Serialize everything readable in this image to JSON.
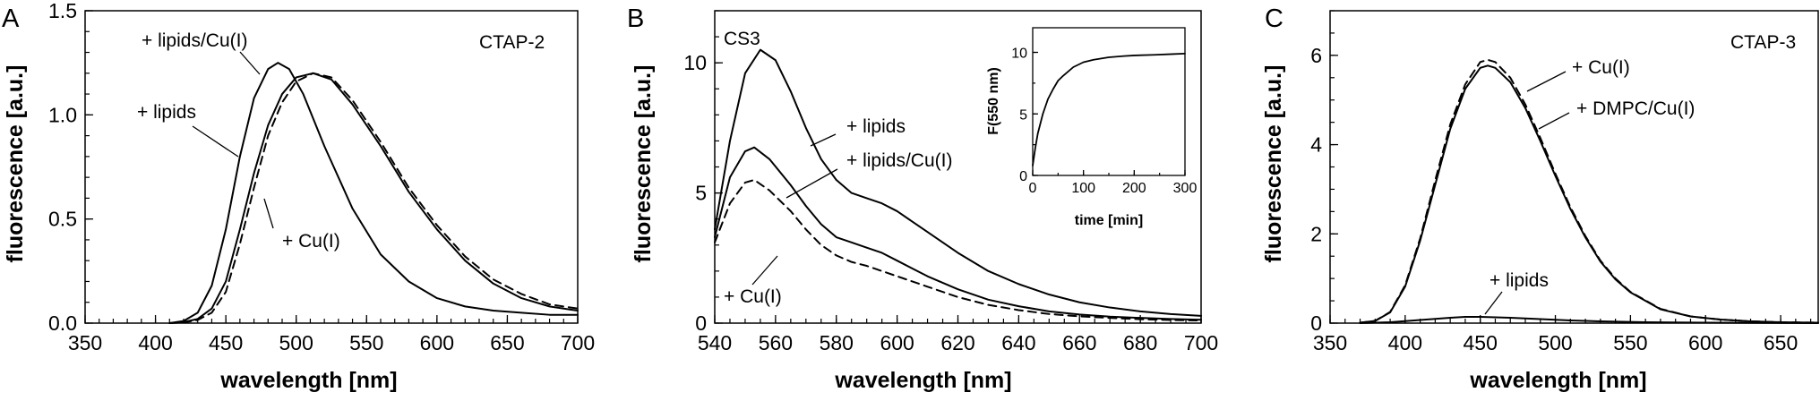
{
  "chart_data": [
    {
      "type": "line",
      "panel": "A",
      "title": "CTAP-2",
      "xlabel": "wavelength [nm]",
      "ylabel": "fluorescence [a.u.]",
      "xlim": [
        350,
        700
      ],
      "ylim": [
        0,
        1.5
      ],
      "xticks": [
        350,
        400,
        450,
        500,
        550,
        600,
        650,
        700
      ],
      "yticks": [
        0.0,
        0.5,
        1.0,
        1.5
      ],
      "ytick_labels": [
        "0.0",
        "0.5",
        "1.0",
        "1.5"
      ],
      "series": [
        {
          "name": "+ lipids",
          "style": "solid",
          "x": [
            410,
            420,
            430,
            440,
            450,
            460,
            470,
            480,
            487,
            495,
            505,
            520,
            540,
            560,
            580,
            600,
            620,
            640,
            660,
            680,
            700
          ],
          "y": [
            0,
            0.01,
            0.05,
            0.18,
            0.45,
            0.8,
            1.08,
            1.22,
            1.25,
            1.22,
            1.1,
            0.85,
            0.55,
            0.33,
            0.2,
            0.12,
            0.08,
            0.06,
            0.05,
            0.04,
            0.04
          ]
        },
        {
          "name": "+ lipids/Cu(I)",
          "style": "solid",
          "x": [
            410,
            420,
            430,
            440,
            450,
            460,
            470,
            480,
            490,
            500,
            512,
            525,
            540,
            560,
            580,
            600,
            620,
            640,
            660,
            680,
            700
          ],
          "y": [
            0,
            0.005,
            0.02,
            0.07,
            0.2,
            0.45,
            0.72,
            0.95,
            1.1,
            1.18,
            1.2,
            1.17,
            1.05,
            0.85,
            0.63,
            0.45,
            0.3,
            0.19,
            0.12,
            0.08,
            0.06
          ]
        },
        {
          "name": "+ Cu(I)",
          "style": "dashed",
          "x": [
            410,
            420,
            430,
            440,
            450,
            460,
            470,
            480,
            490,
            500,
            512,
            525,
            540,
            560,
            580,
            600,
            620,
            640,
            660,
            680,
            700
          ],
          "y": [
            0,
            0.003,
            0.015,
            0.05,
            0.15,
            0.38,
            0.65,
            0.9,
            1.06,
            1.16,
            1.2,
            1.18,
            1.07,
            0.87,
            0.65,
            0.47,
            0.32,
            0.21,
            0.14,
            0.09,
            0.07
          ]
        }
      ],
      "annotations": [
        "+ lipids/Cu(I)",
        "+ lipids",
        "+ Cu(I)"
      ]
    },
    {
      "type": "line",
      "panel": "B",
      "title": "CS3",
      "xlabel": "wavelength [nm]",
      "ylabel": "fluorescence [a.u.]",
      "xlim": [
        540,
        700
      ],
      "ylim": [
        0,
        12
      ],
      "xticks": [
        540,
        560,
        580,
        600,
        620,
        640,
        660,
        680,
        700
      ],
      "yticks": [
        0,
        5,
        10
      ],
      "ytick_labels": [
        "0",
        "5",
        "10"
      ],
      "series": [
        {
          "name": "+ lipids",
          "style": "solid",
          "x": [
            540,
            545,
            550,
            555,
            560,
            565,
            570,
            575,
            580,
            585,
            590,
            595,
            600,
            610,
            620,
            630,
            640,
            650,
            660,
            670,
            680,
            690,
            700
          ],
          "y": [
            3.6,
            7.0,
            9.6,
            10.5,
            10.1,
            8.9,
            7.5,
            6.3,
            5.5,
            5.0,
            4.8,
            4.6,
            4.3,
            3.5,
            2.7,
            2.0,
            1.5,
            1.1,
            0.8,
            0.6,
            0.45,
            0.35,
            0.28
          ]
        },
        {
          "name": "+ lipids/Cu(I)",
          "style": "solid",
          "x": [
            540,
            545,
            550,
            553,
            558,
            565,
            570,
            575,
            580,
            585,
            590,
            595,
            600,
            610,
            620,
            630,
            640,
            650,
            660,
            670,
            680,
            690,
            700
          ],
          "y": [
            3.3,
            5.6,
            6.6,
            6.75,
            6.3,
            5.3,
            4.5,
            3.8,
            3.3,
            3.1,
            2.9,
            2.7,
            2.4,
            1.8,
            1.3,
            0.9,
            0.65,
            0.45,
            0.33,
            0.25,
            0.2,
            0.16,
            0.13
          ]
        },
        {
          "name": "+ Cu(I)",
          "style": "dashed",
          "x": [
            540,
            545,
            550,
            553,
            558,
            565,
            570,
            575,
            580,
            585,
            590,
            595,
            600,
            610,
            620,
            630,
            640,
            650,
            660,
            670,
            680,
            690,
            700
          ],
          "y": [
            3.1,
            4.6,
            5.4,
            5.5,
            5.1,
            4.3,
            3.6,
            3.0,
            2.6,
            2.35,
            2.2,
            2.0,
            1.8,
            1.4,
            1.0,
            0.7,
            0.5,
            0.35,
            0.26,
            0.2,
            0.15,
            0.12,
            0.1
          ]
        }
      ],
      "annotations": [
        "+ lipids",
        "+ lipids/Cu(I)",
        "+ Cu(I)"
      ],
      "inset": {
        "type": "line",
        "xlabel": "time [min]",
        "ylabel": "F(550 nm)",
        "xlim": [
          0,
          300
        ],
        "ylim": [
          0,
          12
        ],
        "xticks": [
          0,
          100,
          200,
          300
        ],
        "yticks": [
          0,
          5,
          10
        ],
        "x": [
          0,
          5,
          10,
          20,
          30,
          40,
          50,
          60,
          80,
          100,
          120,
          150,
          180,
          200,
          240,
          270,
          300
        ],
        "y": [
          0.8,
          2.2,
          3.4,
          5.0,
          6.2,
          7.0,
          7.7,
          8.1,
          8.8,
          9.2,
          9.4,
          9.6,
          9.7,
          9.75,
          9.8,
          9.85,
          9.9
        ]
      }
    },
    {
      "type": "line",
      "panel": "C",
      "title": "CTAP-3",
      "xlabel": "wavelength [nm]",
      "ylabel": "fluorescence [a.u.]",
      "xlim": [
        350,
        675
      ],
      "ylim": [
        0,
        7
      ],
      "xticks": [
        350,
        400,
        450,
        500,
        550,
        600,
        650
      ],
      "yticks": [
        0,
        2,
        4,
        6
      ],
      "ytick_labels": [
        "0",
        "2",
        "4",
        "6"
      ],
      "series": [
        {
          "name": "+ Cu(I)",
          "style": "dashed",
          "x": [
            370,
            380,
            390,
            400,
            410,
            420,
            430,
            440,
            450,
            455,
            460,
            470,
            480,
            490,
            500,
            510,
            520,
            530,
            540,
            550,
            570,
            590,
            610,
            630,
            650,
            675
          ],
          "y": [
            0.01,
            0.05,
            0.25,
            0.85,
            1.9,
            3.2,
            4.45,
            5.35,
            5.85,
            5.9,
            5.85,
            5.5,
            4.9,
            4.15,
            3.35,
            2.6,
            1.95,
            1.4,
            1.0,
            0.7,
            0.32,
            0.15,
            0.08,
            0.04,
            0.02,
            0.01
          ]
        },
        {
          "name": "+ DMPC/Cu(I)",
          "style": "solid",
          "x": [
            370,
            380,
            390,
            400,
            410,
            420,
            430,
            440,
            450,
            455,
            460,
            470,
            480,
            490,
            500,
            510,
            520,
            530,
            540,
            550,
            570,
            590,
            610,
            630,
            650,
            675
          ],
          "y": [
            0.01,
            0.05,
            0.24,
            0.82,
            1.85,
            3.1,
            4.35,
            5.25,
            5.72,
            5.77,
            5.72,
            5.4,
            4.82,
            4.08,
            3.3,
            2.56,
            1.92,
            1.38,
            0.98,
            0.69,
            0.31,
            0.15,
            0.08,
            0.04,
            0.02,
            0.01
          ]
        },
        {
          "name": "+ lipids",
          "style": "solid",
          "x": [
            370,
            390,
            410,
            430,
            440,
            450,
            470,
            490,
            510,
            530,
            560,
            600,
            640,
            675
          ],
          "y": [
            0,
            0.02,
            0.07,
            0.12,
            0.14,
            0.14,
            0.12,
            0.09,
            0.06,
            0.04,
            0.02,
            0.01,
            0.005,
            0
          ]
        }
      ],
      "annotations": [
        "+ Cu(I)",
        "+ DMPC/Cu(I)",
        "+ lipids"
      ]
    }
  ]
}
